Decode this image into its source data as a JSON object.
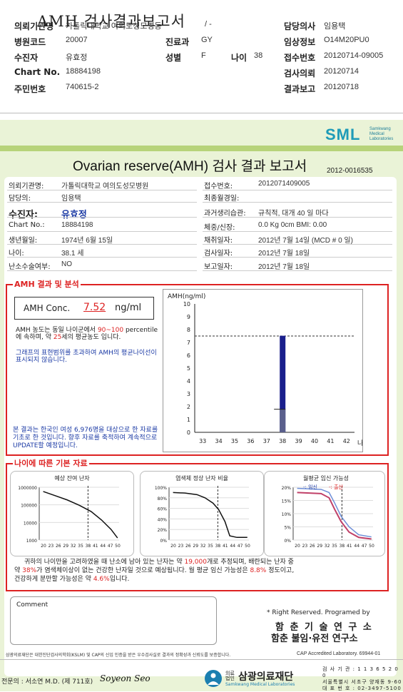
{
  "header": {
    "title": "AMH 검사결과보고서",
    "rows": [
      {
        "l1": "의뢰기관명",
        "v1": "가톨릭대학교 여의도성모병동",
        "v1b": "/ -",
        "l2": "담당의사",
        "v2": "임용택"
      },
      {
        "l1": "병원코드",
        "v1": "20007",
        "l1c": "진료과",
        "v1c": "GY",
        "l2": "임상정보",
        "v2": "O14M20PU0"
      },
      {
        "l1": "수진자",
        "v1": "유효정",
        "l1c": "성별",
        "v1c": "F",
        "l1d": "나이",
        "v1d": "38",
        "l2": "접수번호",
        "v2": "20120714-09005"
      },
      {
        "l1": "Chart No.",
        "v1": "18884198",
        "l2": "검사의뢰",
        "v2": "20120714"
      },
      {
        "l1": "주민번호",
        "v1": "740615-2",
        "l2": "결과보고",
        "v2": "20120718"
      }
    ]
  },
  "logo": {
    "text": "SML",
    "sub1": "Samkwang",
    "sub2": "Medical",
    "sub3": "Laboratories"
  },
  "report": {
    "title": "Ovarian reserve(AMH) 검사 결과 보고서",
    "number": "2012-0016535",
    "left": [
      {
        "label": "의뢰기관명:",
        "value": "가톨릭대학교 여의도성모병원"
      },
      {
        "label": "담당의:",
        "value": "임용택"
      },
      {
        "label": "수진자:",
        "value": "유효정"
      },
      {
        "label": "Chart No.:",
        "value": "18884198"
      },
      {
        "label": "생년월일:",
        "value": "1974년 6월 15일"
      },
      {
        "label": "나이:",
        "value": "38.1 세"
      },
      {
        "label": "난소수술여부:",
        "value": "NO"
      }
    ],
    "right": [
      {
        "label": "접수번호:",
        "value": "2012071409005"
      },
      {
        "label": "최종월경일:",
        "value": ""
      },
      {
        "label": "과거생리습관:",
        "value": "규칙적, 대개   40 일 마다"
      },
      {
        "label": "체중/신장:",
        "value": "0.0  Kg        0cm    BMI:     0.00"
      },
      {
        "label": "채취일자:",
        "value": "2012년 7월 14일   (MCD # 0 일)"
      },
      {
        "label": "검사일자:",
        "value": "2012년 7월 18일"
      },
      {
        "label": "보고일자:",
        "value": "2012년 7월 18일"
      }
    ]
  },
  "amh": {
    "heading": "AMH 결과 및 분석",
    "conc_label": "AMH Conc.",
    "conc_value": "7.52",
    "conc_unit": "ng/ml",
    "desc_a": "AMH 농도는 동일 나이군에서 ",
    "desc_range": "90~100",
    "desc_b": " percentile에 속하며, 약 ",
    "desc_age": "25",
    "desc_c": "세의 평균농도 입니다.",
    "desc2": "그래프의 표현범위를 초과하여 AMH의 평균나이선이 표시되지 않습니다.",
    "desc3": "본 결과는 한국인 여성 6,976명을 대상으로 한 자료를 기초로 한 것입니다. 향후 자료를 축적하여 계속적으로 UPDATE할 예정입니다."
  },
  "chart_data": [
    {
      "type": "bar",
      "ylabel": "AMH(ng/ml)",
      "xlabel": "나이",
      "categories": [
        "33",
        "34",
        "35",
        "36",
        "37",
        "38",
        "39",
        "40",
        "41",
        "42"
      ],
      "ylim": [
        0,
        10
      ],
      "yticks": [
        "0",
        "1",
        "2",
        "3",
        "4",
        "5",
        "6",
        "7",
        "8",
        "9",
        "10"
      ],
      "series": [
        {
          "values": [
            null,
            null,
            null,
            null,
            null,
            7.52,
            null,
            null,
            null,
            null
          ]
        }
      ],
      "reference_line": 7.5,
      "marker_level": 1.8,
      "color": "#1a1f8c"
    },
    {
      "type": "line",
      "title": "예상 잔여 난자",
      "yticks": [
        "1000000",
        "100000",
        "10000",
        "1000"
      ],
      "x": [
        "20",
        "23",
        "26",
        "29",
        "32",
        "35",
        "38",
        "41",
        "44",
        "47",
        "50"
      ],
      "marker_x": "38"
    },
    {
      "type": "line",
      "title": "염색체 정상 난자 비율",
      "yticks": [
        "100%",
        "80%",
        "60%",
        "40%",
        "20%",
        "0%"
      ],
      "x": [
        "20",
        "23",
        "26",
        "29",
        "32",
        "35",
        "38",
        "41",
        "44",
        "47",
        "50"
      ],
      "marker_x": "38"
    },
    {
      "type": "line",
      "title": "월평균 임신 가능성",
      "legend": [
        "임신",
        "출산"
      ],
      "yticks": [
        "20%",
        "15%",
        "10%",
        "5%",
        "0%"
      ],
      "x": [
        "20",
        "23",
        "26",
        "29",
        "32",
        "35",
        "38",
        "41",
        "44",
        "47",
        "50"
      ],
      "marker_x": "38"
    }
  ],
  "age": {
    "heading": "나이에 따른 기본 자료",
    "line1a": "귀하의 나이만을 고려하였을 때 난소에 남아 있는 난자는 약 ",
    "line1b": "19,000",
    "line1c": "개로 추정되며, 배란되는 난자 중",
    "line2a": "약 ",
    "line2b": "38%",
    "line2c": "가 염색체이상이 없는 건강한 난자일 것으로 예상됩니다. 월 평균 임신 가능성은 ",
    "line2d": "8.8%",
    "line2e": " 정도이고,",
    "line3a": "건강하게 분만할 가능성은 약 ",
    "line3b": "4.6%",
    "line3c": "입니다."
  },
  "comment_label": "Comment",
  "rights": "* Right Reserved. Programed by",
  "lab1": "함 춘 기 술 연 구 소",
  "lab2": "함춘 불임·유전 연구소",
  "footer_note": "삼광의료재단은 대한진단검사의학회(KSLM) 및 CAP의 신임 인증을 받은 우수검사실로 결과의 정확성과 신뢰도를 보증합니다.",
  "cap_note": "CAP  Accredited  Laboratory.  69944-01",
  "doctor": "전문의 : 서소연 M.D. (제 711호)",
  "signature": "Soyeon Seo",
  "foundation_name": "삼광의료재단",
  "foundation_small": "의료 법인",
  "foundation_en": "Samkwang Medical Laboratories",
  "address": [
    "검 사 기 관 : 1 1 3 6 5 2 0 0",
    "서울특별시 서초구 양재동 9-60",
    "대 표 번 호 : 02-3497-5100"
  ]
}
